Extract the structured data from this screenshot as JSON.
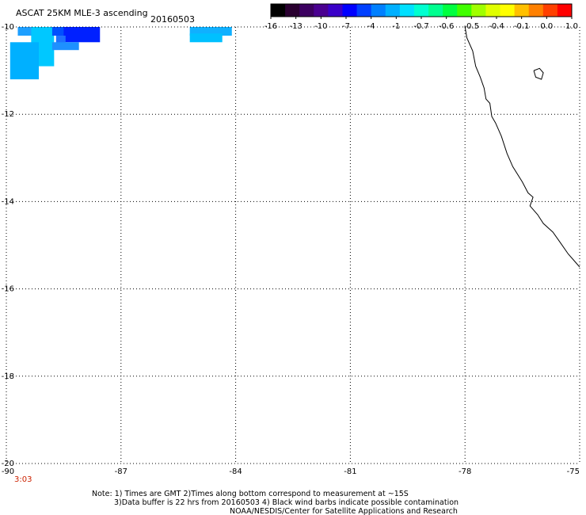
{
  "header": {
    "title": "ASCAT 25KM MLE-3 ascending",
    "date": "20160503"
  },
  "colorbar": {
    "colors": [
      "#000000",
      "#2a0030",
      "#3c0060",
      "#4a0090",
      "#3a00c8",
      "#0000ff",
      "#0040ff",
      "#0080ff",
      "#00b0ff",
      "#00e0ff",
      "#00ffd0",
      "#00ff90",
      "#00ff40",
      "#40ff00",
      "#a0ff00",
      "#e0ff00",
      "#ffff00",
      "#ffc000",
      "#ff8000",
      "#ff4000",
      "#ff0000"
    ],
    "tick_labels": [
      "-16",
      "-13",
      "-10",
      "-7",
      "-4",
      "-1",
      "-0.7",
      "-0.6",
      "-0.5",
      "-0.4",
      "-0.1",
      "0.0",
      "1.0"
    ]
  },
  "map": {
    "lon_range": [
      -90,
      -75
    ],
    "lat_range": [
      -20,
      -10
    ],
    "lon_ticks": [
      {
        "value": -90,
        "label": "-90"
      },
      {
        "value": -87,
        "label": "-87"
      },
      {
        "value": -84,
        "label": "-84"
      },
      {
        "value": -81,
        "label": "-81"
      },
      {
        "value": -78,
        "label": "-78"
      },
      {
        "value": -75,
        "label": "-75"
      }
    ],
    "lat_ticks": [
      {
        "value": -10,
        "label": "-10"
      },
      {
        "value": -12,
        "label": "-12"
      },
      {
        "value": -14,
        "label": "-14"
      },
      {
        "value": -16,
        "label": "-16"
      },
      {
        "value": -18,
        "label": "-18"
      },
      {
        "value": -20,
        "label": "-20"
      }
    ],
    "time_label": "3:03",
    "data_cells": [
      {
        "lon": -89.7,
        "lat": -10.0,
        "w": 0.85,
        "h": 0.2,
        "color": "#1e9fff"
      },
      {
        "lon": -89.35,
        "lat": -10.0,
        "w": 0.6,
        "h": 0.9,
        "color": "#00c8ff"
      },
      {
        "lon": -89.9,
        "lat": -10.35,
        "w": 0.75,
        "h": 0.85,
        "color": "#00b0ff"
      },
      {
        "lon": -88.8,
        "lat": -10.0,
        "w": 0.6,
        "h": 0.2,
        "color": "#0050ff"
      },
      {
        "lon": -88.5,
        "lat": -10.0,
        "w": 0.95,
        "h": 0.35,
        "color": "#0020ff"
      },
      {
        "lon": -88.7,
        "lat": -10.2,
        "w": 0.25,
        "h": 0.2,
        "color": "#1e70ff"
      },
      {
        "lon": -88.8,
        "lat": -10.35,
        "w": 0.7,
        "h": 0.18,
        "color": "#1e90ff"
      },
      {
        "lon": -85.2,
        "lat": -10.0,
        "w": 1.1,
        "h": 0.2,
        "color": "#10b0ff"
      },
      {
        "lon": -85.2,
        "lat": -10.15,
        "w": 0.85,
        "h": 0.2,
        "color": "#00c0ff"
      }
    ],
    "coastline": [
      [
        -78.0,
        -10.0
      ],
      [
        -77.95,
        -10.25
      ],
      [
        -77.8,
        -10.55
      ],
      [
        -77.72,
        -10.9
      ],
      [
        -77.6,
        -11.15
      ],
      [
        -77.5,
        -11.4
      ],
      [
        -77.45,
        -11.65
      ],
      [
        -77.35,
        -11.75
      ],
      [
        -77.3,
        -12.05
      ],
      [
        -77.2,
        -12.2
      ],
      [
        -77.05,
        -12.5
      ],
      [
        -76.9,
        -12.9
      ],
      [
        -76.75,
        -13.2
      ],
      [
        -76.5,
        -13.55
      ],
      [
        -76.35,
        -13.8
      ],
      [
        -76.22,
        -13.9
      ],
      [
        -76.3,
        -14.1
      ],
      [
        -76.1,
        -14.3
      ],
      [
        -75.95,
        -14.5
      ],
      [
        -75.7,
        -14.7
      ],
      [
        -75.5,
        -14.95
      ],
      [
        -75.3,
        -15.2
      ],
      [
        -75.1,
        -15.4
      ],
      [
        -75.0,
        -15.5
      ]
    ],
    "island": [
      [
        -76.2,
        -11.0
      ],
      [
        -76.05,
        -10.95
      ],
      [
        -75.95,
        -11.05
      ],
      [
        -76.0,
        -11.2
      ],
      [
        -76.15,
        -11.15
      ],
      [
        -76.2,
        -11.0
      ]
    ]
  },
  "notes": {
    "line1": "Note: 1) Times are GMT 2)Times along bottom correspond to measurement at ~15S",
    "line2": "3)Data buffer is 22 hrs from 20160503 4) Black wind barbs indicate possible contamination",
    "line3": "NOAA/NESDIS/Center for Satellite Applications and Research"
  }
}
